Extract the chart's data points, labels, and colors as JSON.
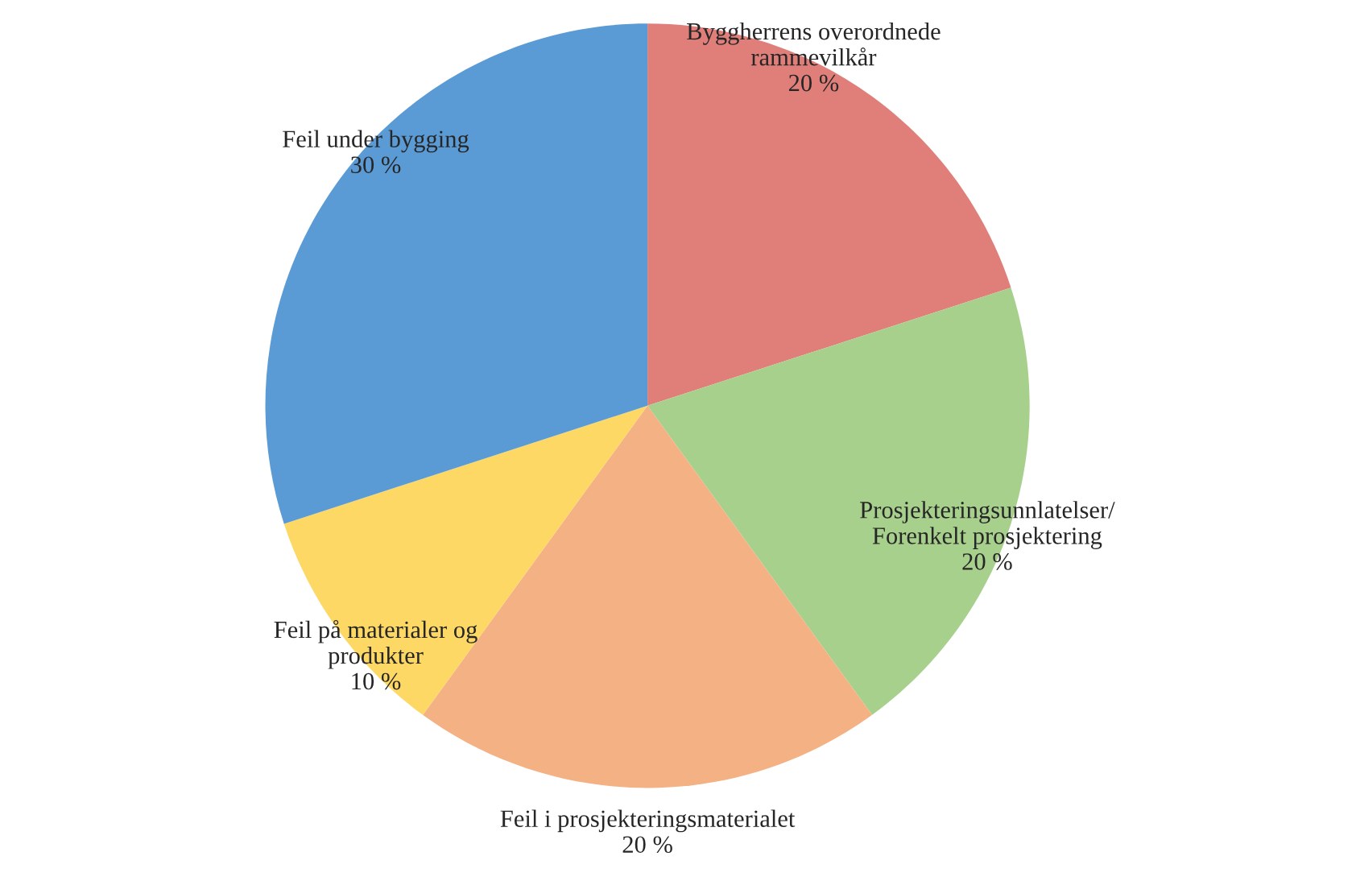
{
  "chart_data": {
    "type": "pie",
    "categories": [
      "Byggherrens overordnede\nrammevilkår",
      "Prosjekteringsunnlatelser/\nForenkelt prosjektering",
      "Feil i prosjekteringsmaterialet",
      "Feil på materialer og\nprodukter",
      "Feil under bygging"
    ],
    "values": [
      20,
      20,
      20,
      10,
      30
    ],
    "value_labels": [
      "20 %",
      "20 %",
      "20 %",
      "10 %",
      "30 %"
    ],
    "colors": [
      "#e07f7a",
      "#a8d08d",
      "#f4b183",
      "#fdd865",
      "#5b9bd5"
    ]
  }
}
